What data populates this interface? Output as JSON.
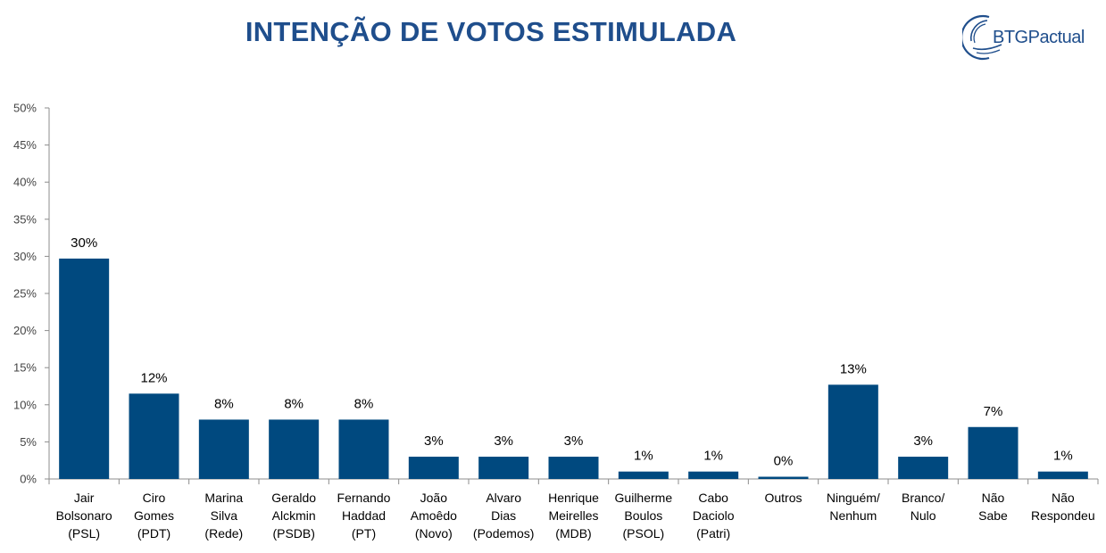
{
  "header": {
    "title": "INTENÇÃO DE VOTOS ESTIMULADA",
    "logo_text": "BTGPactual"
  },
  "colors": {
    "bar": "#00497f",
    "title": "#1f4e8c",
    "axis": "#8c8c8c"
  },
  "chart_data": {
    "type": "bar",
    "title": "INTENÇÃO DE VOTOS ESTIMULADA",
    "xlabel": "",
    "ylabel": "",
    "ylim": [
      0,
      50
    ],
    "yticks": [
      "0%",
      "5%",
      "10%",
      "15%",
      "20%",
      "25%",
      "30%",
      "35%",
      "40%",
      "45%",
      "50%"
    ],
    "grid": false,
    "categories": [
      [
        "Jair",
        "Bolsonaro",
        "(PSL)"
      ],
      [
        "Ciro",
        "Gomes",
        "(PDT)"
      ],
      [
        "Marina",
        "Silva",
        "(Rede)"
      ],
      [
        "Geraldo",
        "Alckmin",
        "(PSDB)"
      ],
      [
        "Fernando",
        "Haddad",
        "(PT)"
      ],
      [
        "João",
        "Amoêdo",
        "(Novo)"
      ],
      [
        "Alvaro",
        "Dias",
        "(Podemos)"
      ],
      [
        "Henrique",
        "Meirelles",
        "(MDB)"
      ],
      [
        "Guilherme",
        "Boulos",
        "(PSOL)"
      ],
      [
        "Cabo",
        "Daciolo",
        "(Patri)"
      ],
      [
        "Outros"
      ],
      [
        "Ninguém/",
        "Nenhum"
      ],
      [
        "Branco/",
        "Nulo"
      ],
      [
        "Não",
        "Sabe"
      ],
      [
        "Não",
        "Respondeu"
      ]
    ],
    "values": [
      29.7,
      11.5,
      8.0,
      8.0,
      8.0,
      3.0,
      3.0,
      3.0,
      1.0,
      1.0,
      0.3,
      12.7,
      3.0,
      7.0,
      1.0
    ],
    "labels": [
      "30%",
      "12%",
      "8%",
      "8%",
      "8%",
      "3%",
      "3%",
      "3%",
      "1%",
      "1%",
      "0%",
      "13%",
      "3%",
      "7%",
      "1%"
    ]
  }
}
